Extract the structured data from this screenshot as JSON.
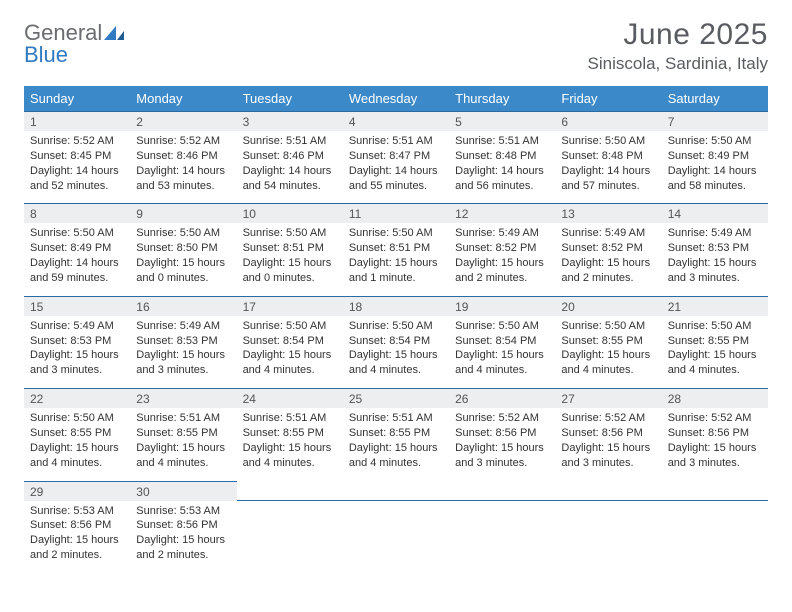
{
  "brand": {
    "name_gray": "General",
    "name_blue": "Blue"
  },
  "title": "June 2025",
  "location": "Siniscola, Sardinia, Italy",
  "colors": {
    "header_bg": "#3b89c9",
    "header_text": "#ffffff",
    "daynum_bg": "#eceef0",
    "row_border": "#2b6aa3",
    "body_text": "#333333",
    "title_text": "#595c60",
    "logo_gray": "#6a6c70",
    "logo_blue": "#2f7ac1",
    "page_bg": "#ffffff"
  },
  "typography": {
    "title_fontsize": 30,
    "location_fontsize": 17,
    "dayhead_fontsize": 13,
    "daynum_fontsize": 12,
    "cell_fontsize": 11
  },
  "day_headers": [
    "Sunday",
    "Monday",
    "Tuesday",
    "Wednesday",
    "Thursday",
    "Friday",
    "Saturday"
  ],
  "weeks": [
    [
      {
        "n": "1",
        "sr": "Sunrise: 5:52 AM",
        "ss": "Sunset: 8:45 PM",
        "d1": "Daylight: 14 hours",
        "d2": "and 52 minutes."
      },
      {
        "n": "2",
        "sr": "Sunrise: 5:52 AM",
        "ss": "Sunset: 8:46 PM",
        "d1": "Daylight: 14 hours",
        "d2": "and 53 minutes."
      },
      {
        "n": "3",
        "sr": "Sunrise: 5:51 AM",
        "ss": "Sunset: 8:46 PM",
        "d1": "Daylight: 14 hours",
        "d2": "and 54 minutes."
      },
      {
        "n": "4",
        "sr": "Sunrise: 5:51 AM",
        "ss": "Sunset: 8:47 PM",
        "d1": "Daylight: 14 hours",
        "d2": "and 55 minutes."
      },
      {
        "n": "5",
        "sr": "Sunrise: 5:51 AM",
        "ss": "Sunset: 8:48 PM",
        "d1": "Daylight: 14 hours",
        "d2": "and 56 minutes."
      },
      {
        "n": "6",
        "sr": "Sunrise: 5:50 AM",
        "ss": "Sunset: 8:48 PM",
        "d1": "Daylight: 14 hours",
        "d2": "and 57 minutes."
      },
      {
        "n": "7",
        "sr": "Sunrise: 5:50 AM",
        "ss": "Sunset: 8:49 PM",
        "d1": "Daylight: 14 hours",
        "d2": "and 58 minutes."
      }
    ],
    [
      {
        "n": "8",
        "sr": "Sunrise: 5:50 AM",
        "ss": "Sunset: 8:49 PM",
        "d1": "Daylight: 14 hours",
        "d2": "and 59 minutes."
      },
      {
        "n": "9",
        "sr": "Sunrise: 5:50 AM",
        "ss": "Sunset: 8:50 PM",
        "d1": "Daylight: 15 hours",
        "d2": "and 0 minutes."
      },
      {
        "n": "10",
        "sr": "Sunrise: 5:50 AM",
        "ss": "Sunset: 8:51 PM",
        "d1": "Daylight: 15 hours",
        "d2": "and 0 minutes."
      },
      {
        "n": "11",
        "sr": "Sunrise: 5:50 AM",
        "ss": "Sunset: 8:51 PM",
        "d1": "Daylight: 15 hours",
        "d2": "and 1 minute."
      },
      {
        "n": "12",
        "sr": "Sunrise: 5:49 AM",
        "ss": "Sunset: 8:52 PM",
        "d1": "Daylight: 15 hours",
        "d2": "and 2 minutes."
      },
      {
        "n": "13",
        "sr": "Sunrise: 5:49 AM",
        "ss": "Sunset: 8:52 PM",
        "d1": "Daylight: 15 hours",
        "d2": "and 2 minutes."
      },
      {
        "n": "14",
        "sr": "Sunrise: 5:49 AM",
        "ss": "Sunset: 8:53 PM",
        "d1": "Daylight: 15 hours",
        "d2": "and 3 minutes."
      }
    ],
    [
      {
        "n": "15",
        "sr": "Sunrise: 5:49 AM",
        "ss": "Sunset: 8:53 PM",
        "d1": "Daylight: 15 hours",
        "d2": "and 3 minutes."
      },
      {
        "n": "16",
        "sr": "Sunrise: 5:49 AM",
        "ss": "Sunset: 8:53 PM",
        "d1": "Daylight: 15 hours",
        "d2": "and 3 minutes."
      },
      {
        "n": "17",
        "sr": "Sunrise: 5:50 AM",
        "ss": "Sunset: 8:54 PM",
        "d1": "Daylight: 15 hours",
        "d2": "and 4 minutes."
      },
      {
        "n": "18",
        "sr": "Sunrise: 5:50 AM",
        "ss": "Sunset: 8:54 PM",
        "d1": "Daylight: 15 hours",
        "d2": "and 4 minutes."
      },
      {
        "n": "19",
        "sr": "Sunrise: 5:50 AM",
        "ss": "Sunset: 8:54 PM",
        "d1": "Daylight: 15 hours",
        "d2": "and 4 minutes."
      },
      {
        "n": "20",
        "sr": "Sunrise: 5:50 AM",
        "ss": "Sunset: 8:55 PM",
        "d1": "Daylight: 15 hours",
        "d2": "and 4 minutes."
      },
      {
        "n": "21",
        "sr": "Sunrise: 5:50 AM",
        "ss": "Sunset: 8:55 PM",
        "d1": "Daylight: 15 hours",
        "d2": "and 4 minutes."
      }
    ],
    [
      {
        "n": "22",
        "sr": "Sunrise: 5:50 AM",
        "ss": "Sunset: 8:55 PM",
        "d1": "Daylight: 15 hours",
        "d2": "and 4 minutes."
      },
      {
        "n": "23",
        "sr": "Sunrise: 5:51 AM",
        "ss": "Sunset: 8:55 PM",
        "d1": "Daylight: 15 hours",
        "d2": "and 4 minutes."
      },
      {
        "n": "24",
        "sr": "Sunrise: 5:51 AM",
        "ss": "Sunset: 8:55 PM",
        "d1": "Daylight: 15 hours",
        "d2": "and 4 minutes."
      },
      {
        "n": "25",
        "sr": "Sunrise: 5:51 AM",
        "ss": "Sunset: 8:55 PM",
        "d1": "Daylight: 15 hours",
        "d2": "and 4 minutes."
      },
      {
        "n": "26",
        "sr": "Sunrise: 5:52 AM",
        "ss": "Sunset: 8:56 PM",
        "d1": "Daylight: 15 hours",
        "d2": "and 3 minutes."
      },
      {
        "n": "27",
        "sr": "Sunrise: 5:52 AM",
        "ss": "Sunset: 8:56 PM",
        "d1": "Daylight: 15 hours",
        "d2": "and 3 minutes."
      },
      {
        "n": "28",
        "sr": "Sunrise: 5:52 AM",
        "ss": "Sunset: 8:56 PM",
        "d1": "Daylight: 15 hours",
        "d2": "and 3 minutes."
      }
    ],
    [
      {
        "n": "29",
        "sr": "Sunrise: 5:53 AM",
        "ss": "Sunset: 8:56 PM",
        "d1": "Daylight: 15 hours",
        "d2": "and 2 minutes."
      },
      {
        "n": "30",
        "sr": "Sunrise: 5:53 AM",
        "ss": "Sunset: 8:56 PM",
        "d1": "Daylight: 15 hours",
        "d2": "and 2 minutes."
      },
      null,
      null,
      null,
      null,
      null
    ]
  ]
}
